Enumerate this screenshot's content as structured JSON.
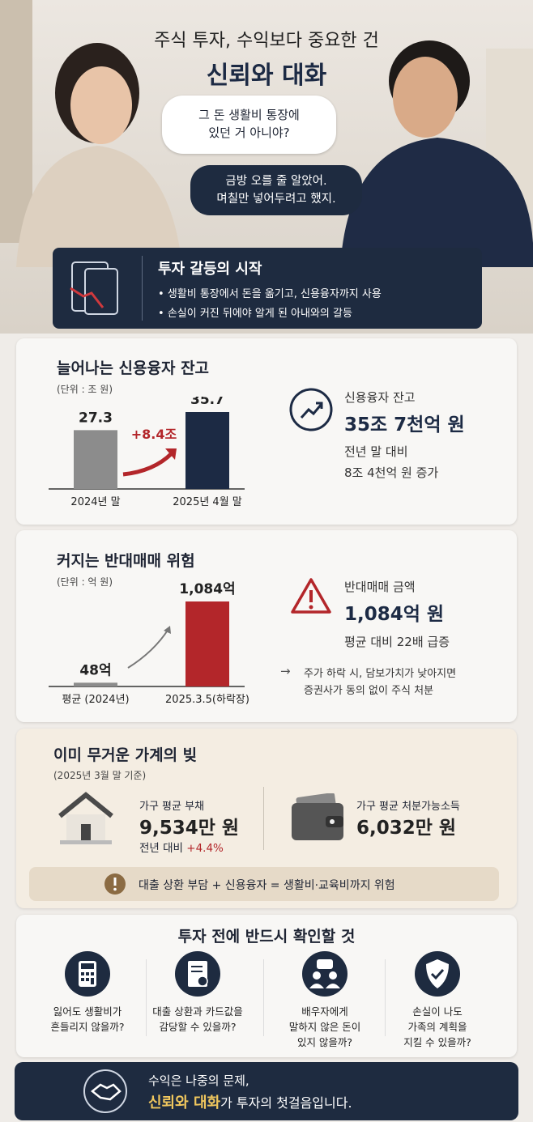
{
  "header": {
    "title_line1": "주식 투자, 수익보다 중요한 건",
    "title_line2": "신뢰와 대화",
    "bubble_her": [
      "그 돈 생활비 통장에",
      "있던 거 아니야?"
    ],
    "bubble_him": [
      "금방 오를 줄 알았어.",
      "며칠만 넣어두려고 했지."
    ]
  },
  "conflict": {
    "title": "투자 갈등의 시작",
    "bullets": [
      "생활비 통장에서 돈을 옮기고, 신용융자까지 사용",
      "손실이 커진 뒤에야 알게 된 아내와의 갈등"
    ]
  },
  "chart_data": [
    {
      "type": "bar",
      "title": "늘어나는 신용융자 잔고",
      "unit": "(단위 : 조 원)",
      "categories": [
        "2024년 말",
        "2025년 4월 말"
      ],
      "values": [
        27.3,
        35.7
      ],
      "colors": [
        "#8c8c8c",
        "#1c2a44"
      ],
      "annotation": "+8.4조"
    },
    {
      "type": "bar",
      "title": "커지는 반대매매 위험",
      "unit": "(단위 : 억 원)",
      "categories": [
        "평균 (2024년)",
        "2025.3.5(하락장)"
      ],
      "values": [
        48,
        1084
      ],
      "value_labels": [
        "48억",
        "1,084억"
      ],
      "colors": [
        "#8c8c8c",
        "#b3262a"
      ]
    }
  ],
  "credit_stats": {
    "label": "신용융자 잔고",
    "value": "35조 7천억 원",
    "compare": "전년 말 대비",
    "increase": "8조 4천억 원 증가"
  },
  "forced_sale_stats": {
    "label": "반대매매 금액",
    "value": "1,084억 원",
    "compare": "평균 대비 22배 급증",
    "note": [
      "주가 하락 시, 담보가치가 낮아지면",
      "증권사가 동의 없이 주식 처분"
    ]
  },
  "household": {
    "title": "이미 무거운 가계의 빚",
    "basis": "(2025년 3월 말 기준)",
    "debt_label": "가구 평균 부채",
    "debt_value": "9,534만 원",
    "debt_compare": "전년 대비",
    "debt_change": "+4.4%",
    "income_label": "가구 평균 처분가능소득",
    "income_value": "6,032만 원",
    "warning": "대출 상환 부담 + 신용융자 = 생활비·교육비까지 위험"
  },
  "checklist": {
    "title": "투자 전에 반드시 확인할 것",
    "items": [
      [
        "잃어도 생활비가",
        "흔들리지 않을까?"
      ],
      [
        "대출 상환과 카드값을",
        "감당할 수 있을까?"
      ],
      [
        "배우자에게",
        "말하지 않은 돈이",
        "있지 않을까?"
      ],
      [
        "손실이 나도",
        "가족의 계획을",
        "지킬 수 있을까?"
      ]
    ]
  },
  "footer": {
    "line1": "수익은 나중의 문제,",
    "highlight": "신뢰와 대화",
    "line2_rest": "가 투자의 첫걸음입니다."
  }
}
